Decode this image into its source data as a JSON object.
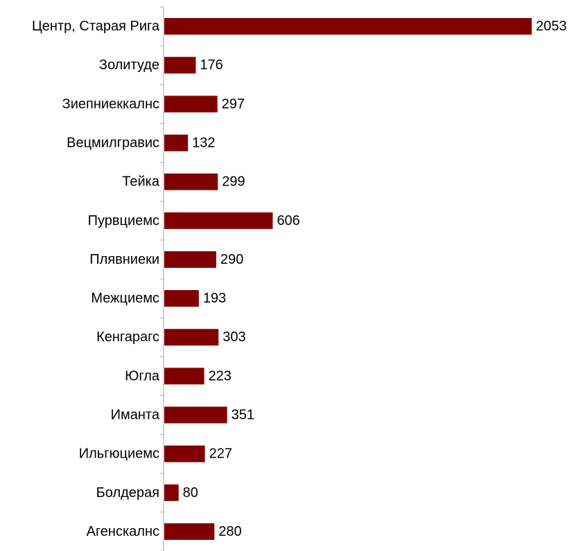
{
  "chart_data": {
    "type": "bar",
    "orientation": "horizontal",
    "categories": [
      "Центр, Старая Рига",
      "Золитуде",
      "Зиепниеккалнс",
      "Вецмилгравис",
      "Тейка",
      "Пурвциемс",
      "Плявниеки",
      "Межциемс",
      "Кенгарагс",
      "Югла",
      "Иманта",
      "Ильгюциемс",
      "Болдерая",
      "Агенскалнс"
    ],
    "values": [
      2053,
      176,
      297,
      132,
      299,
      606,
      290,
      193,
      303,
      223,
      351,
      227,
      80,
      280
    ],
    "data_labels": [
      "2053",
      "176",
      "297",
      "132",
      "299",
      "606",
      "290",
      "193",
      "303",
      "223",
      "351",
      "227",
      "80",
      "280"
    ],
    "title": "",
    "xlabel": "",
    "ylabel": "",
    "xlim": [
      0,
      2053
    ],
    "grid": false,
    "legend": "none",
    "bar_color": "#800000",
    "axis_color": "#a6a6a6"
  }
}
